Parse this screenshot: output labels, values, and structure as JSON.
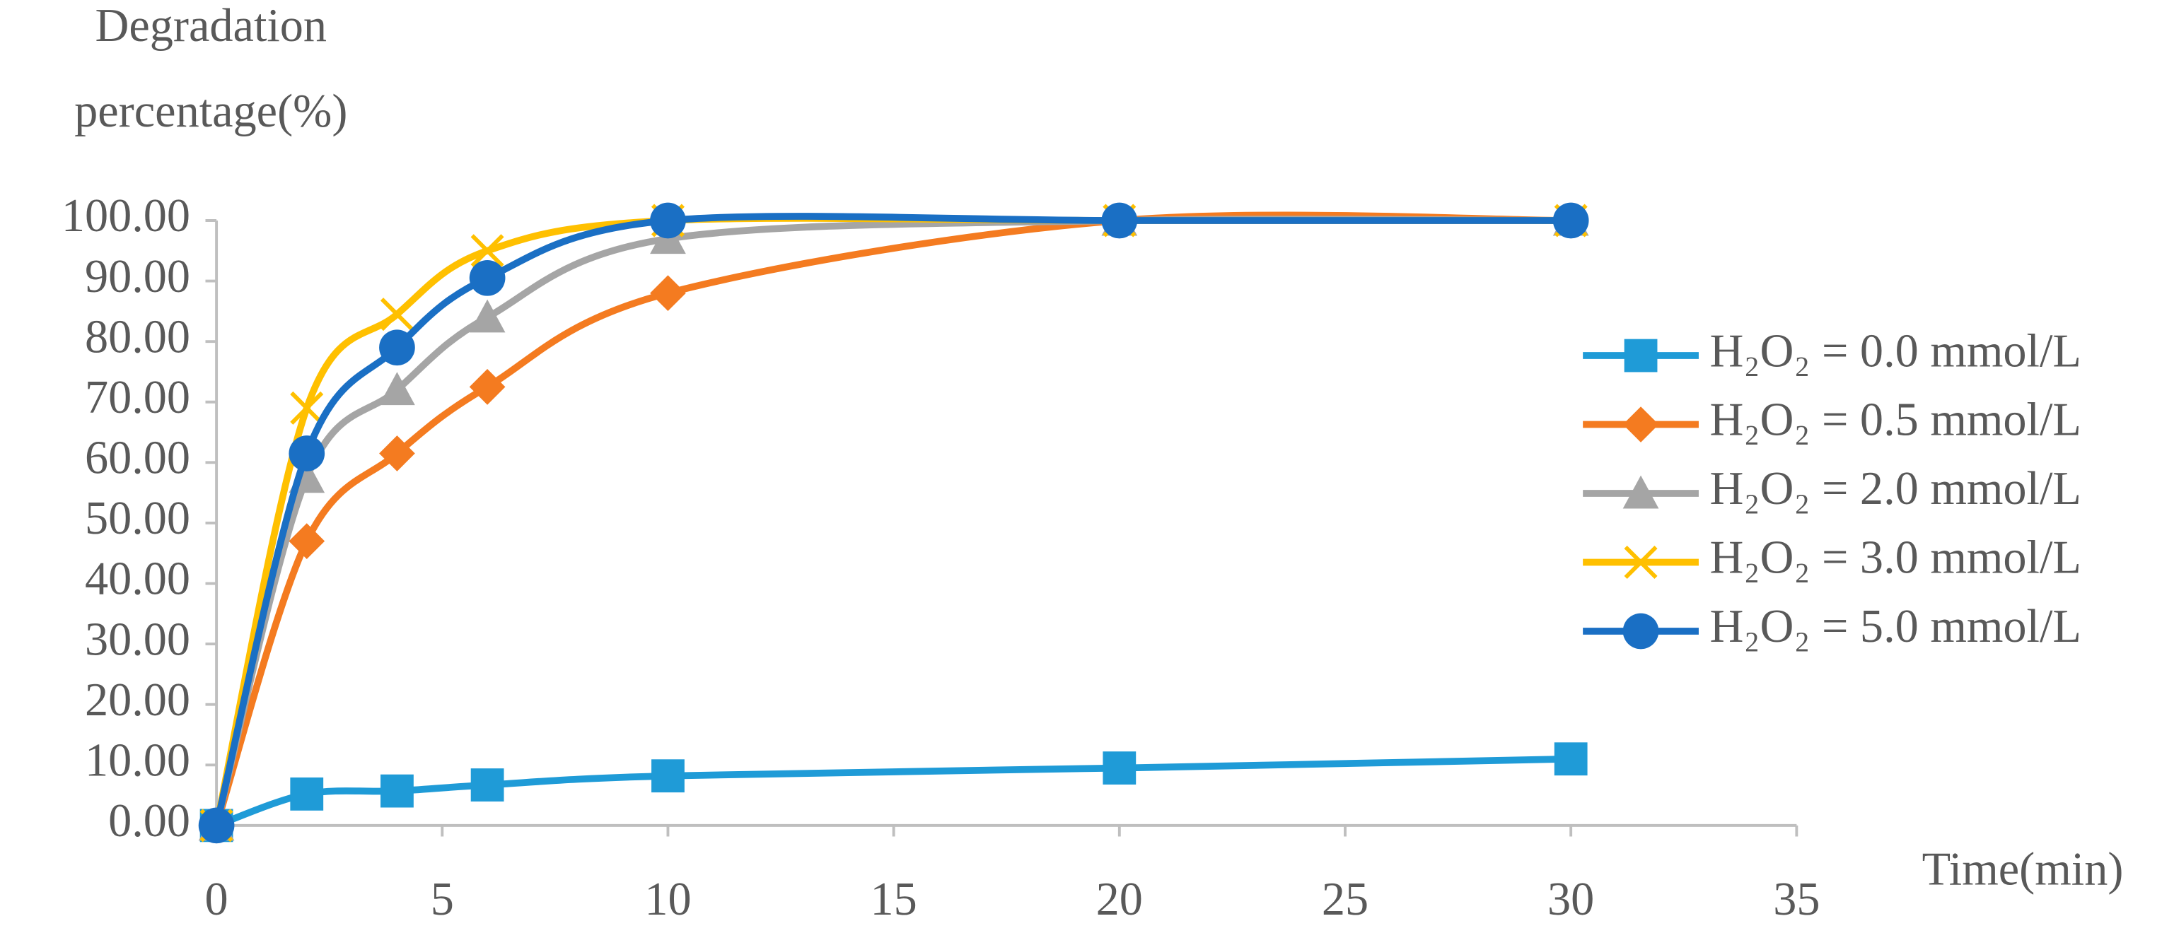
{
  "chart_data": {
    "type": "line",
    "y_label": "Degradation percentage(%)",
    "x_label": "Time(min)",
    "x": [
      0,
      2,
      4,
      6,
      10,
      20,
      30
    ],
    "series": [
      {
        "name": "H₂O₂ = 0.0 mmol/L",
        "color": "#1f9bd7",
        "marker": "square",
        "values": [
          0,
          5.2,
          5.7,
          6.7,
          8.2,
          9.5,
          11
        ]
      },
      {
        "name": "H₂O₂ = 0.5 mmol/L",
        "color": "#f47b20",
        "marker": "diamond",
        "values": [
          0,
          47,
          61.5,
          72.5,
          88,
          100,
          100
        ]
      },
      {
        "name": "H₂O₂ = 2.0 mmol/L",
        "color": "#a5a5a5",
        "marker": "triangle",
        "values": [
          0,
          57.5,
          72,
          84,
          97,
          100,
          100
        ]
      },
      {
        "name": "H₂O₂ = 3.0 mmol/L",
        "color": "#ffc000",
        "marker": "x",
        "values": [
          0,
          69,
          84.5,
          95,
          100,
          100,
          100
        ]
      },
      {
        "name": "H₂O₂ = 5.0 mmol/L",
        "color": "#1a6fc4",
        "marker": "circle",
        "values": [
          0,
          61.5,
          79,
          90.5,
          100,
          100,
          100
        ]
      }
    ],
    "xlim": [
      0,
      35
    ],
    "xticks": [
      0,
      5,
      10,
      15,
      20,
      25,
      30,
      35
    ],
    "ylim": [
      0,
      100
    ],
    "yticks": [
      {
        "value": 0,
        "label": "0.00"
      },
      {
        "value": 10,
        "label": "10.00"
      },
      {
        "value": 20,
        "label": "20.00"
      },
      {
        "value": 30,
        "label": "30.00"
      },
      {
        "value": 40,
        "label": "40.00"
      },
      {
        "value": 50,
        "label": "50.00"
      },
      {
        "value": 60,
        "label": "60.00"
      },
      {
        "value": 70,
        "label": "70.00"
      },
      {
        "value": 80,
        "label": "80.00"
      },
      {
        "value": 90,
        "label": "90.00"
      },
      {
        "value": 100,
        "label": "100.00"
      }
    ],
    "legend": "right",
    "smooth": true
  }
}
